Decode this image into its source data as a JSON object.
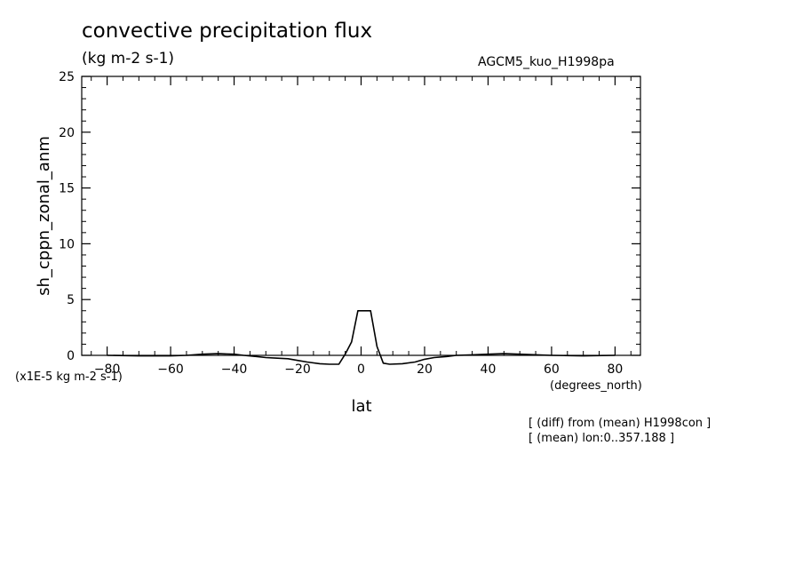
{
  "header": {
    "title": "convective precipitation flux",
    "units": "(kg m-2 s-1)",
    "run_name": "AGCM5_kuo_H1998pa"
  },
  "notes": [
    "[ (diff) from (mean) H1998con ]",
    "[ (mean) lon:0..357.188 ]"
  ],
  "chart_data": {
    "type": "line",
    "title": "convective precipitation flux",
    "subtitle": "(kg m-2 s-1)",
    "xlabel": "lat",
    "xunits": "(degrees_north)",
    "ylabel": "sh_cppn_zonal_anm",
    "yunits": "(x1E-5 kg m-2 s-1)",
    "xlim": [
      -88,
      88
    ],
    "ylim": [
      0,
      25
    ],
    "xticks": [
      -80,
      -60,
      -40,
      -20,
      0,
      20,
      40,
      60,
      80
    ],
    "yticks": [
      0,
      5,
      10,
      15,
      20,
      25
    ],
    "grid": false,
    "series": [
      {
        "x": [
          -80,
          -70,
          -60,
          -55,
          -50,
          -45,
          -40,
          -37,
          -33,
          -30,
          -27,
          -23,
          -20,
          -17,
          -13,
          -10,
          -7,
          -5,
          -3,
          -1,
          1,
          3,
          5,
          7,
          9,
          13,
          17,
          20,
          23,
          27,
          30,
          35,
          40,
          45,
          50,
          60,
          70,
          80
        ],
        "y": [
          0.0,
          -0.05,
          -0.05,
          0.0,
          0.1,
          0.15,
          0.1,
          0.0,
          -0.1,
          -0.2,
          -0.25,
          -0.3,
          -0.45,
          -0.6,
          -0.75,
          -0.8,
          -0.8,
          0.1,
          1.2,
          4.0,
          4.0,
          4.0,
          0.8,
          -0.7,
          -0.8,
          -0.75,
          -0.6,
          -0.35,
          -0.2,
          -0.1,
          0.0,
          0.05,
          0.1,
          0.15,
          0.1,
          0.0,
          -0.05,
          0.0
        ]
      }
    ]
  }
}
